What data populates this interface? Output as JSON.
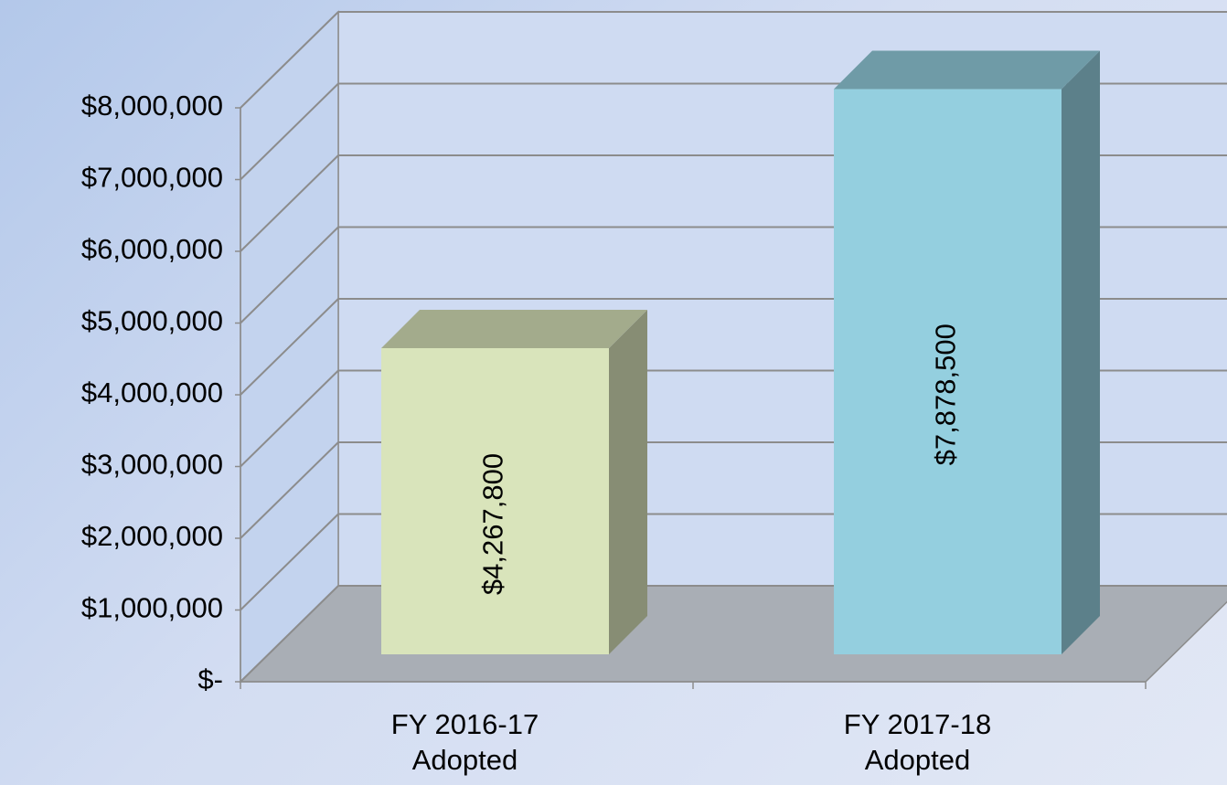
{
  "chart_data": {
    "type": "bar3d",
    "categories": [
      "FY 2016-17 Adopted",
      "FY 2017-18 Adopted"
    ],
    "values": [
      4267800,
      7878500
    ],
    "value_labels": [
      "$4,267,800",
      "$7,878,500"
    ],
    "colors": [
      "#d9e4bb",
      "#94cfdf"
    ],
    "ylim": [
      0,
      8000000
    ],
    "yticks": [
      {
        "value": 0,
        "label": "$-"
      },
      {
        "value": 1000000,
        "label": "$1,000,000"
      },
      {
        "value": 2000000,
        "label": "$2,000,000"
      },
      {
        "value": 3000000,
        "label": "$3,000,000"
      },
      {
        "value": 4000000,
        "label": "$4,000,000"
      },
      {
        "value": 5000000,
        "label": "$5,000,000"
      },
      {
        "value": 6000000,
        "label": "$6,000,000"
      },
      {
        "value": 7000000,
        "label": "$7,000,000"
      },
      {
        "value": 8000000,
        "label": "$8,000,000"
      }
    ],
    "grid": true
  }
}
